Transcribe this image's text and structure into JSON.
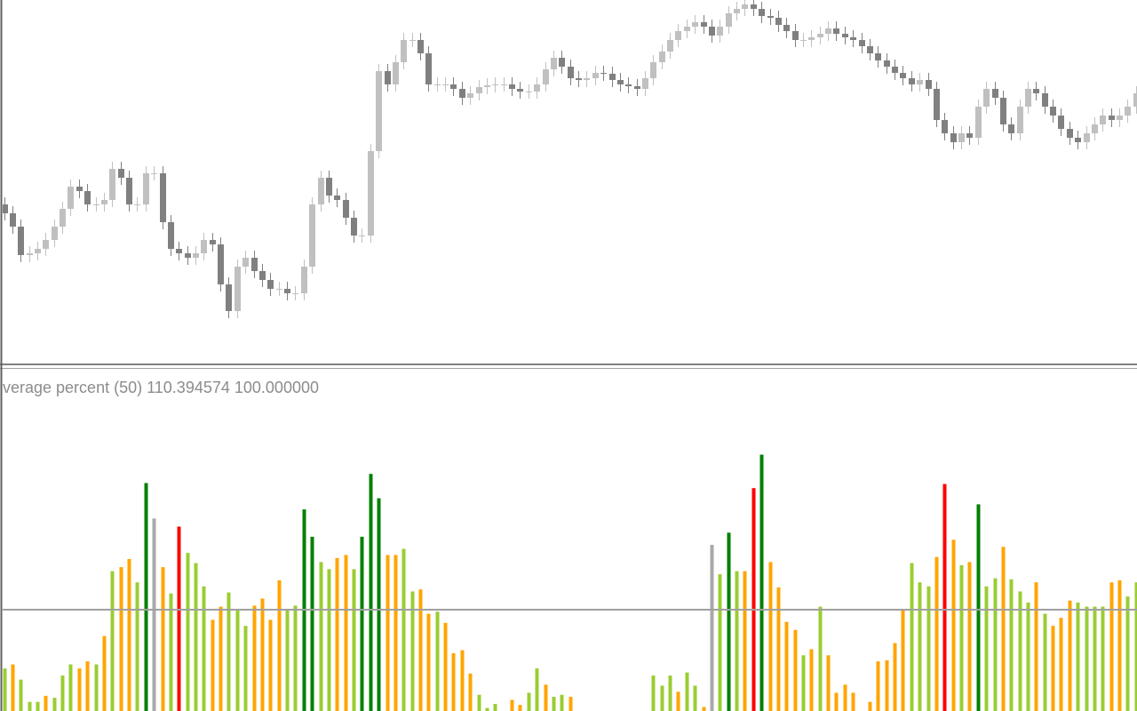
{
  "chart_data": [
    {
      "type": "candlestick",
      "up_color": "#c0c0c0",
      "down_color": "#808080",
      "ylim": [
        0,
        410
      ],
      "open": [
        180,
        170,
        155,
        123,
        125,
        130,
        140,
        155,
        175,
        200,
        195,
        180,
        180,
        185,
        220,
        210,
        180,
        180,
        215,
        215,
        160,
        130,
        125,
        120,
        125,
        140,
        135,
        90,
        60,
        110,
        120,
        105,
        95,
        85,
        85,
        80,
        80,
        110,
        180,
        210,
        190,
        185,
        165,
        145,
        145,
        240,
        330,
        315,
        340,
        365,
        365,
        350,
        315,
        315,
        315,
        310,
        300,
        305,
        312,
        314,
        315,
        315,
        310,
        307,
        307,
        315,
        332,
        345,
        335,
        322,
        320,
        322,
        328,
        327,
        320,
        315,
        313,
        310,
        322,
        340,
        352,
        365,
        375,
        380,
        385,
        380,
        370,
        380,
        395,
        400,
        405,
        400,
        392,
        390,
        382,
        375,
        365,
        365,
        368,
        372,
        378,
        372,
        368,
        365,
        358,
        350,
        342,
        335,
        328,
        322,
        315,
        320,
        310,
        275,
        260,
        250,
        260,
        255,
        290,
        310,
        300,
        270,
        260,
        290,
        310,
        305,
        290,
        280,
        265,
        255,
        250,
        260,
        270,
        280,
        275,
        280,
        290
      ],
      "high": [
        188,
        178,
        163,
        133,
        138,
        148,
        163,
        183,
        208,
        208,
        203,
        188,
        193,
        228,
        228,
        218,
        188,
        223,
        223,
        223,
        168,
        138,
        133,
        133,
        148,
        148,
        143,
        98,
        118,
        128,
        128,
        113,
        103,
        93,
        93,
        88,
        118,
        188,
        218,
        218,
        198,
        193,
        173,
        153,
        248,
        338,
        338,
        348,
        373,
        373,
        373,
        358,
        323,
        323,
        323,
        318,
        313,
        320,
        322,
        323,
        323,
        323,
        318,
        315,
        323,
        340,
        353,
        353,
        343,
        330,
        330,
        336,
        336,
        335,
        328,
        323,
        321,
        330,
        348,
        360,
        373,
        383,
        388,
        393,
        393,
        388,
        388,
        403,
        408,
        413,
        413,
        408,
        400,
        398,
        390,
        383,
        373,
        376,
        380,
        386,
        386,
        380,
        376,
        373,
        366,
        358,
        350,
        343,
        336,
        330,
        328,
        328,
        318,
        283,
        268,
        268,
        268,
        298,
        318,
        318,
        308,
        278,
        298,
        318,
        318,
        313,
        298,
        288,
        273,
        263,
        268,
        278,
        288,
        288,
        288,
        298,
        313
      ],
      "low": [
        162,
        147,
        115,
        115,
        117,
        122,
        132,
        147,
        167,
        187,
        172,
        172,
        172,
        177,
        202,
        172,
        172,
        172,
        207,
        152,
        122,
        117,
        112,
        112,
        117,
        127,
        82,
        52,
        52,
        102,
        97,
        87,
        77,
        77,
        72,
        72,
        72,
        102,
        172,
        182,
        177,
        157,
        137,
        137,
        137,
        232,
        307,
        307,
        332,
        357,
        342,
        307,
        307,
        307,
        302,
        292,
        292,
        297,
        304,
        306,
        307,
        302,
        299,
        299,
        299,
        307,
        324,
        327,
        314,
        312,
        312,
        314,
        319,
        312,
        307,
        305,
        302,
        302,
        314,
        332,
        344,
        357,
        367,
        372,
        372,
        362,
        362,
        372,
        387,
        392,
        392,
        384,
        382,
        374,
        367,
        357,
        357,
        357,
        360,
        364,
        364,
        360,
        357,
        350,
        342,
        334,
        327,
        320,
        314,
        307,
        307,
        302,
        267,
        252,
        242,
        242,
        247,
        247,
        282,
        292,
        262,
        252,
        252,
        282,
        297,
        282,
        272,
        257,
        247,
        242,
        242,
        252,
        262,
        267,
        267,
        272,
        282
      ],
      "close": [
        170,
        155,
        123,
        125,
        130,
        140,
        155,
        175,
        200,
        195,
        180,
        180,
        185,
        220,
        210,
        180,
        180,
        215,
        215,
        160,
        130,
        125,
        120,
        125,
        140,
        135,
        90,
        60,
        110,
        120,
        105,
        95,
        85,
        85,
        80,
        80,
        110,
        180,
        210,
        190,
        185,
        165,
        145,
        145,
        240,
        330,
        315,
        340,
        365,
        365,
        350,
        315,
        315,
        315,
        310,
        300,
        305,
        312,
        314,
        315,
        315,
        310,
        307,
        307,
        315,
        332,
        345,
        335,
        322,
        320,
        322,
        328,
        327,
        320,
        315,
        313,
        310,
        322,
        340,
        352,
        365,
        375,
        380,
        385,
        380,
        370,
        380,
        395,
        400,
        405,
        400,
        392,
        390,
        382,
        375,
        365,
        365,
        368,
        372,
        378,
        372,
        368,
        365,
        358,
        350,
        342,
        335,
        328,
        322,
        315,
        320,
        310,
        275,
        260,
        250,
        260,
        255,
        290,
        310,
        300,
        270,
        260,
        290,
        310,
        305,
        290,
        280,
        265,
        255,
        250,
        260,
        270,
        280,
        275,
        280,
        290,
        305
      ]
    },
    {
      "type": "bar",
      "legend_text": "verage percent (50)",
      "current_value": {
        "value": 110.394574,
        "label": "110.394574"
      },
      "level": {
        "value": 100,
        "label": "100.000000"
      },
      "level_color": "#a0a0a0",
      "ylim": [
        0,
        300
      ],
      "values": [
        42,
        46,
        31,
        9,
        9,
        15,
        13,
        35,
        46,
        42,
        49,
        46,
        74,
        138,
        142,
        150,
        127,
        225,
        190,
        142,
        116,
        182,
        156,
        146,
        123,
        90,
        103,
        117,
        100,
        84,
        104,
        111,
        90,
        129,
        100,
        104,
        199,
        172,
        147,
        140,
        151,
        154,
        140,
        172,
        234,
        210,
        154,
        154,
        160,
        118,
        120,
        96,
        98,
        87,
        57,
        60,
        37,
        16,
        3,
        7,
        null,
        11,
        6,
        18,
        42,
        26,
        14,
        16,
        14,
        null,
        null,
        null,
        null,
        null,
        null,
        null,
        null,
        null,
        35,
        25,
        35,
        19,
        38,
        25,
        4,
        164,
        135,
        176,
        138,
        138,
        220,
        253,
        147,
        122,
        88,
        80,
        55,
        61,
        103,
        55,
        18,
        26,
        18,
        null,
        9,
        49,
        50,
        67,
        100,
        146,
        127,
        123,
        152,
        224,
        169,
        144,
        147,
        204,
        123,
        131,
        162,
        130,
        118,
        107,
        127,
        96,
        84,
        92,
        109,
        107,
        103,
        103,
        103,
        127,
        129,
        113,
        127
      ],
      "colors": [
        "#9acd32",
        "#ffa500",
        "#9acd32",
        "#9acd32",
        "#9acd32",
        "#ffa500",
        "#9acd32",
        "#9acd32",
        "#9acd32",
        "#ffa500",
        "#ffa500",
        "#9acd32",
        "#ffa500",
        "#9acd32",
        "#ffa500",
        "#ffa500",
        "#9acd32",
        "#008000",
        "#a9a9a9",
        "#ffa500",
        "#9acd32",
        "#ff0000",
        "#9acd32",
        "#9acd32",
        "#9acd32",
        "#ffa500",
        "#ffa500",
        "#9acd32",
        "#9acd32",
        "#9acd32",
        "#ffa500",
        "#ffa500",
        "#ffa500",
        "#ffa500",
        "#9acd32",
        "#9acd32",
        "#008000",
        "#008000",
        "#9acd32",
        "#9acd32",
        "#ffa500",
        "#ffa500",
        "#9acd32",
        "#008000",
        "#008000",
        "#008000",
        "#ffa500",
        "#ffa500",
        "#9acd32",
        "#9acd32",
        "#ffa500",
        "#ffa500",
        "#9acd32",
        "#ffa500",
        "#ffa500",
        "#ffa500",
        "#ffa500",
        "#9acd32",
        "#9acd32",
        "#9acd32",
        null,
        "#ffa500",
        "#ffa500",
        "#9acd32",
        "#9acd32",
        "#ffa500",
        "#9acd32",
        "#9acd32",
        "#ffa500",
        null,
        null,
        null,
        null,
        null,
        null,
        null,
        null,
        null,
        "#9acd32",
        "#9acd32",
        "#9acd32",
        "#ffa500",
        "#9acd32",
        "#9acd32",
        "#ffa500",
        "#a9a9a9",
        "#9acd32",
        "#008000",
        "#9acd32",
        "#ffa500",
        "#ff0000",
        "#008000",
        "#ffa500",
        "#ffa500",
        "#ffa500",
        "#ffa500",
        "#9acd32",
        "#ffa500",
        "#9acd32",
        "#ffa500",
        "#ffa500",
        "#ffa500",
        "#ffa500",
        null,
        "#ffa500",
        "#ffa500",
        "#ffa500",
        "#ffa500",
        "#ffa500",
        "#9acd32",
        "#9acd32",
        "#9acd32",
        "#ffa500",
        "#ff0000",
        "#ffa500",
        "#9acd32",
        "#ffa500",
        "#008000",
        "#9acd32",
        "#9acd32",
        "#ffa500",
        "#9acd32",
        "#9acd32",
        "#9acd32",
        "#ffa500",
        "#9acd32",
        "#ffa500",
        "#ffa500",
        "#ffa500",
        "#9acd32",
        "#9acd32",
        "#9acd32",
        "#9acd32",
        "#ffa500",
        "#ffa500",
        "#9acd32",
        "#9acd32"
      ]
    }
  ]
}
